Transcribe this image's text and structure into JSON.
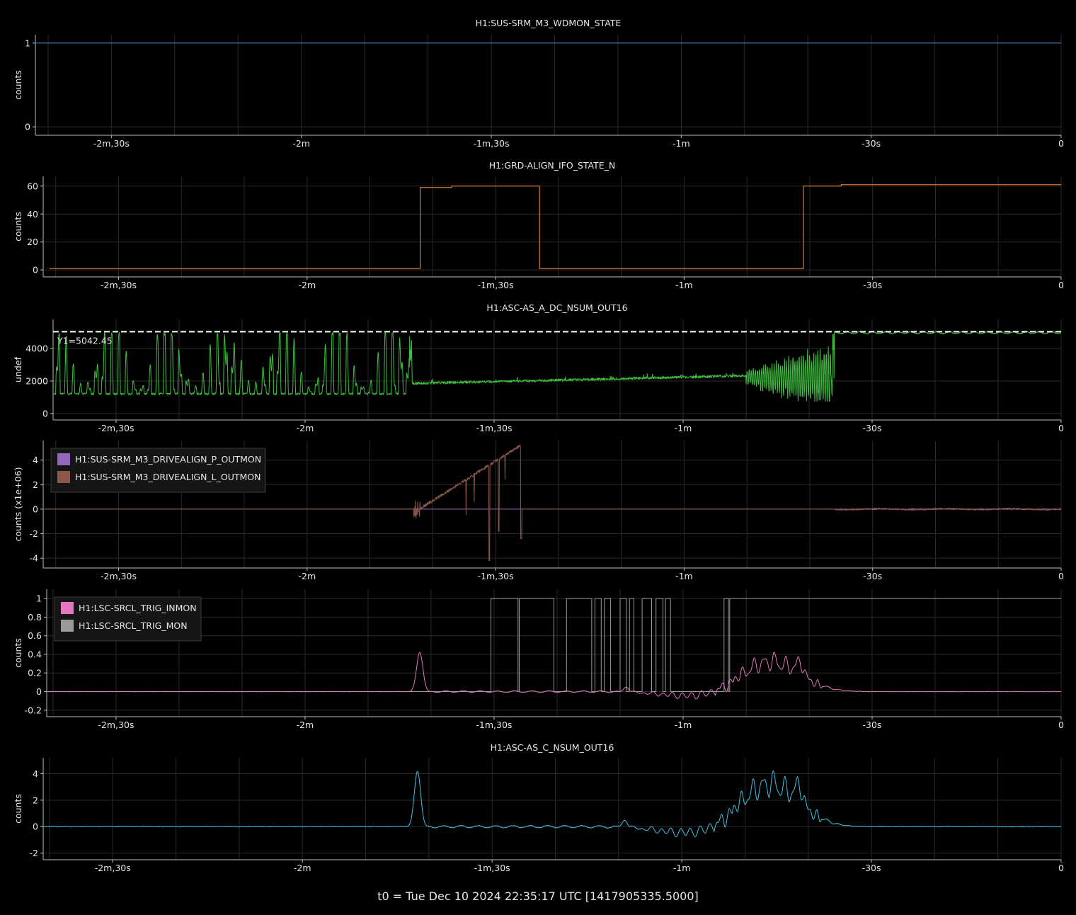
{
  "footer": "t0 = Tue Dec 10 2024 22:35:17 UTC [1417905335.5000]",
  "colors": {
    "background": "#000000",
    "frame": "#bdbdbd",
    "grid": "#2a2a2a",
    "text": "#e6e6e6"
  },
  "chart_data": [
    {
      "type": "line",
      "title": "H1:SUS-SRM_M3_WDMON_STATE",
      "ylabel": "counts",
      "xlim": [
        -162,
        0
      ],
      "ylim": [
        -0.1,
        1.1
      ],
      "grid": true,
      "yticks": [
        {
          "v": 0,
          "label": "0"
        },
        {
          "v": 1,
          "label": "1"
        }
      ],
      "xticks": [
        {
          "v": -150,
          "label": "-2m,30s"
        },
        {
          "v": -120,
          "label": "-2m"
        },
        {
          "v": -90,
          "label": "-1m,30s"
        },
        {
          "v": -60,
          "label": "-1m"
        },
        {
          "v": -30,
          "label": "-30s"
        },
        {
          "v": 0,
          "label": "0"
        }
      ],
      "series": [
        {
          "color": "#4c8ac9",
          "style": "step",
          "points": [
            [
              -162,
              1
            ],
            [
              0,
              1
            ]
          ]
        }
      ]
    },
    {
      "type": "line",
      "title": "H1:GRD-ALIGN_IFO_STATE_N",
      "ylabel": "counts",
      "xlim": [
        -162,
        0
      ],
      "ylim": [
        -5,
        67
      ],
      "grid": true,
      "yticks": [
        {
          "v": 0,
          "label": "0"
        },
        {
          "v": 20,
          "label": "20"
        },
        {
          "v": 40,
          "label": "40"
        },
        {
          "v": 60,
          "label": "60"
        }
      ],
      "xticks": [
        {
          "v": -150,
          "label": "-2m,30s"
        },
        {
          "v": -120,
          "label": "-2m"
        },
        {
          "v": -90,
          "label": "-1m,30s"
        },
        {
          "v": -60,
          "label": "-1m"
        },
        {
          "v": -30,
          "label": "-30s"
        },
        {
          "v": 0,
          "label": "0"
        }
      ],
      "series": [
        {
          "color": "#ff8c3a",
          "style": "step",
          "points": [
            [
              -161,
              1
            ],
            [
              -102,
              1
            ],
            [
              -102,
              59
            ],
            [
              -97,
              59
            ],
            [
              -97,
              60
            ],
            [
              -83,
              60
            ],
            [
              -83,
              1
            ],
            [
              -41,
              1
            ],
            [
              -41,
              60
            ],
            [
              -35,
              60
            ],
            [
              -35,
              61
            ],
            [
              -25,
              61
            ],
            [
              0,
              61
            ]
          ]
        }
      ]
    },
    {
      "type": "line",
      "title": "H1:ASC-AS_A_DC_NSUM_OUT16",
      "ylabel": "undef",
      "xlim": [
        -160,
        0
      ],
      "ylim": [
        -400,
        5800
      ],
      "grid": true,
      "yticks": [
        {
          "v": 0,
          "label": "0"
        },
        {
          "v": 2000,
          "label": "2000"
        },
        {
          "v": 4000,
          "label": "4000"
        }
      ],
      "xticks": [
        {
          "v": -150,
          "label": "-2m,30s"
        },
        {
          "v": -120,
          "label": "-2m"
        },
        {
          "v": -90,
          "label": "-1m,30s"
        },
        {
          "v": -60,
          "label": "-1m"
        },
        {
          "v": -30,
          "label": "-30s"
        },
        {
          "v": 0,
          "label": "0"
        }
      ],
      "hline": {
        "y": 5042.45,
        "label": "Y1=5042.45",
        "color": "#ffffff"
      },
      "series": [
        {
          "color": "#3fbf3f",
          "style": "generated",
          "gen": "asc_a_dc"
        }
      ]
    },
    {
      "type": "line",
      "title": "",
      "ylabel": "counts (x1e+06)",
      "xlim": [
        -162,
        0
      ],
      "ylim": [
        -4.8,
        5.6
      ],
      "grid": true,
      "yticks": [
        {
          "v": -4,
          "label": "-4"
        },
        {
          "v": -2,
          "label": "-2"
        },
        {
          "v": 0,
          "label": "0"
        },
        {
          "v": 2,
          "label": "2"
        },
        {
          "v": 4,
          "label": "4"
        }
      ],
      "xticks": [
        {
          "v": -150,
          "label": "-2m,30s"
        },
        {
          "v": -120,
          "label": "-2m"
        },
        {
          "v": -90,
          "label": "-1m,30s"
        },
        {
          "v": -60,
          "label": "-1m"
        },
        {
          "v": -30,
          "label": "-30s"
        },
        {
          "v": 0,
          "label": "0"
        }
      ],
      "legend": {
        "placement": "top-left",
        "entries": [
          {
            "name": "H1:SUS-SRM_M3_DRIVEALIGN_P_OUTMON",
            "color": "#9467bd"
          },
          {
            "name": "H1:SUS-SRM_M3_DRIVEALIGN_L_OUTMON",
            "color": "#8c564b"
          }
        ]
      },
      "series": [
        {
          "name": "H1:SUS-SRM_M3_DRIVEALIGN_P_OUTMON",
          "color": "#9467bd",
          "style": "generated",
          "gen": "drive_p"
        },
        {
          "name": "H1:SUS-SRM_M3_DRIVEALIGN_L_OUTMON",
          "color": "#8c564b",
          "style": "generated",
          "gen": "drive_l"
        }
      ]
    },
    {
      "type": "line",
      "title": "",
      "ylabel": "counts",
      "xlim": [
        -161,
        0
      ],
      "ylim": [
        -0.27,
        1.1
      ],
      "grid": true,
      "yticks": [
        {
          "v": -0.2,
          "label": "-0.2"
        },
        {
          "v": 0,
          "label": "0"
        },
        {
          "v": 0.2,
          "label": "0.2"
        },
        {
          "v": 0.4,
          "label": "0.4"
        },
        {
          "v": 0.6,
          "label": "0.6"
        },
        {
          "v": 0.8,
          "label": "0.8"
        },
        {
          "v": 1,
          "label": "1"
        }
      ],
      "xticks": [
        {
          "v": -150,
          "label": "-2m,30s"
        },
        {
          "v": -120,
          "label": "-2m"
        },
        {
          "v": -90,
          "label": "-1m,30s"
        },
        {
          "v": -60,
          "label": "-1m"
        },
        {
          "v": -30,
          "label": "-30s"
        },
        {
          "v": 0,
          "label": "0"
        }
      ],
      "legend": {
        "placement": "top-left",
        "entries": [
          {
            "name": "H1:LSC-SRCL_TRIG_INMON",
            "color": "#e377c2"
          },
          {
            "name": "H1:LSC-SRCL_TRIG_MON",
            "color": "#9a9a9a"
          }
        ]
      },
      "series": [
        {
          "name": "H1:LSC-SRCL_TRIG_MON",
          "color": "#9a9a9a",
          "style": "generated",
          "gen": "trig_mon"
        },
        {
          "name": "H1:LSC-SRCL_TRIG_INMON",
          "color": "#e377c2",
          "style": "generated",
          "gen": "trig_inmon",
          "scale": 0.1
        }
      ]
    },
    {
      "type": "line",
      "title": "H1:ASC-AS_C_NSUM_OUT16",
      "ylabel": "counts",
      "xlim": [
        -161,
        0
      ],
      "ylim": [
        -2.5,
        5.2
      ],
      "grid": true,
      "yticks": [
        {
          "v": -2,
          "label": "-2"
        },
        {
          "v": 0,
          "label": "0"
        },
        {
          "v": 2,
          "label": "2"
        },
        {
          "v": 4,
          "label": "4"
        }
      ],
      "xticks": [
        {
          "v": -150,
          "label": "-2m,30s"
        },
        {
          "v": -120,
          "label": "-2m"
        },
        {
          "v": -90,
          "label": "-1m,30s"
        },
        {
          "v": -60,
          "label": "-1m"
        },
        {
          "v": -30,
          "label": "-30s"
        },
        {
          "v": 0,
          "label": "0"
        }
      ],
      "series": [
        {
          "color": "#3fc1e6",
          "style": "generated",
          "gen": "trig_inmon",
          "scale": 1
        }
      ]
    }
  ]
}
